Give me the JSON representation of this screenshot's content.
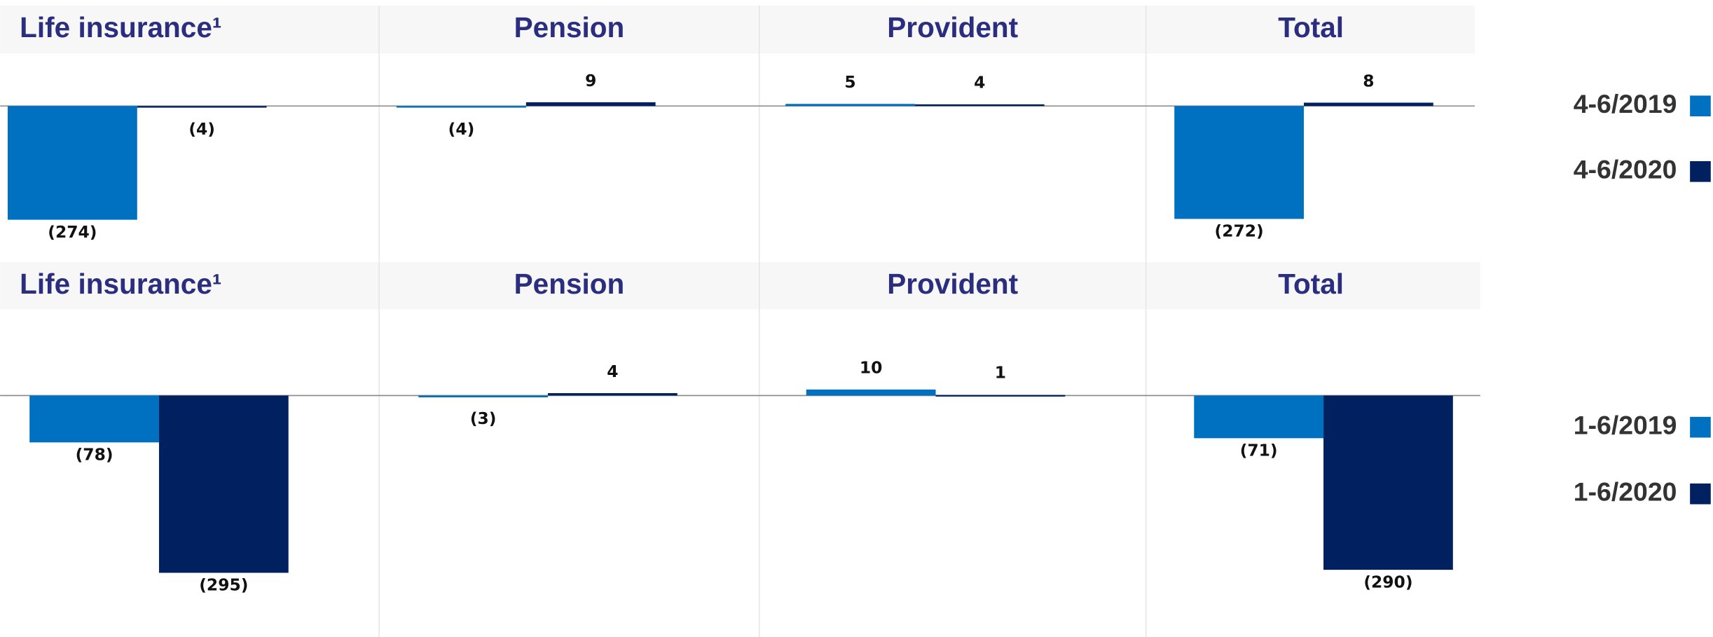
{
  "chart_data": [
    {
      "type": "bar",
      "categories": [
        "Life insurance¹",
        "Pension",
        "Provident",
        "Total"
      ],
      "series": [
        {
          "name": "4-6/2019",
          "color": "#0070c0",
          "values": [
            -274,
            -4,
            5,
            -272
          ],
          "value_labels": [
            "(274)",
            "(4)",
            "5",
            "(272)"
          ]
        },
        {
          "name": "4-6/2020",
          "color": "#002060",
          "values": [
            -4,
            9,
            4,
            8
          ],
          "value_labels": [
            "(4)",
            "9",
            "4",
            "8"
          ]
        }
      ]
    },
    {
      "type": "bar",
      "categories": [
        "Life insurance¹",
        "Pension",
        "Provident",
        "Total"
      ],
      "series": [
        {
          "name": "1-6/2019",
          "color": "#0070c0",
          "values": [
            -78,
            -3,
            10,
            -71
          ],
          "value_labels": [
            "(78)",
            "(3)",
            "10",
            "(71)"
          ]
        },
        {
          "name": "1-6/2020",
          "color": "#002060",
          "values": [
            -295,
            4,
            1,
            -290
          ],
          "value_labels": [
            "(295)",
            "4",
            "1",
            "(290)"
          ]
        }
      ]
    }
  ]
}
